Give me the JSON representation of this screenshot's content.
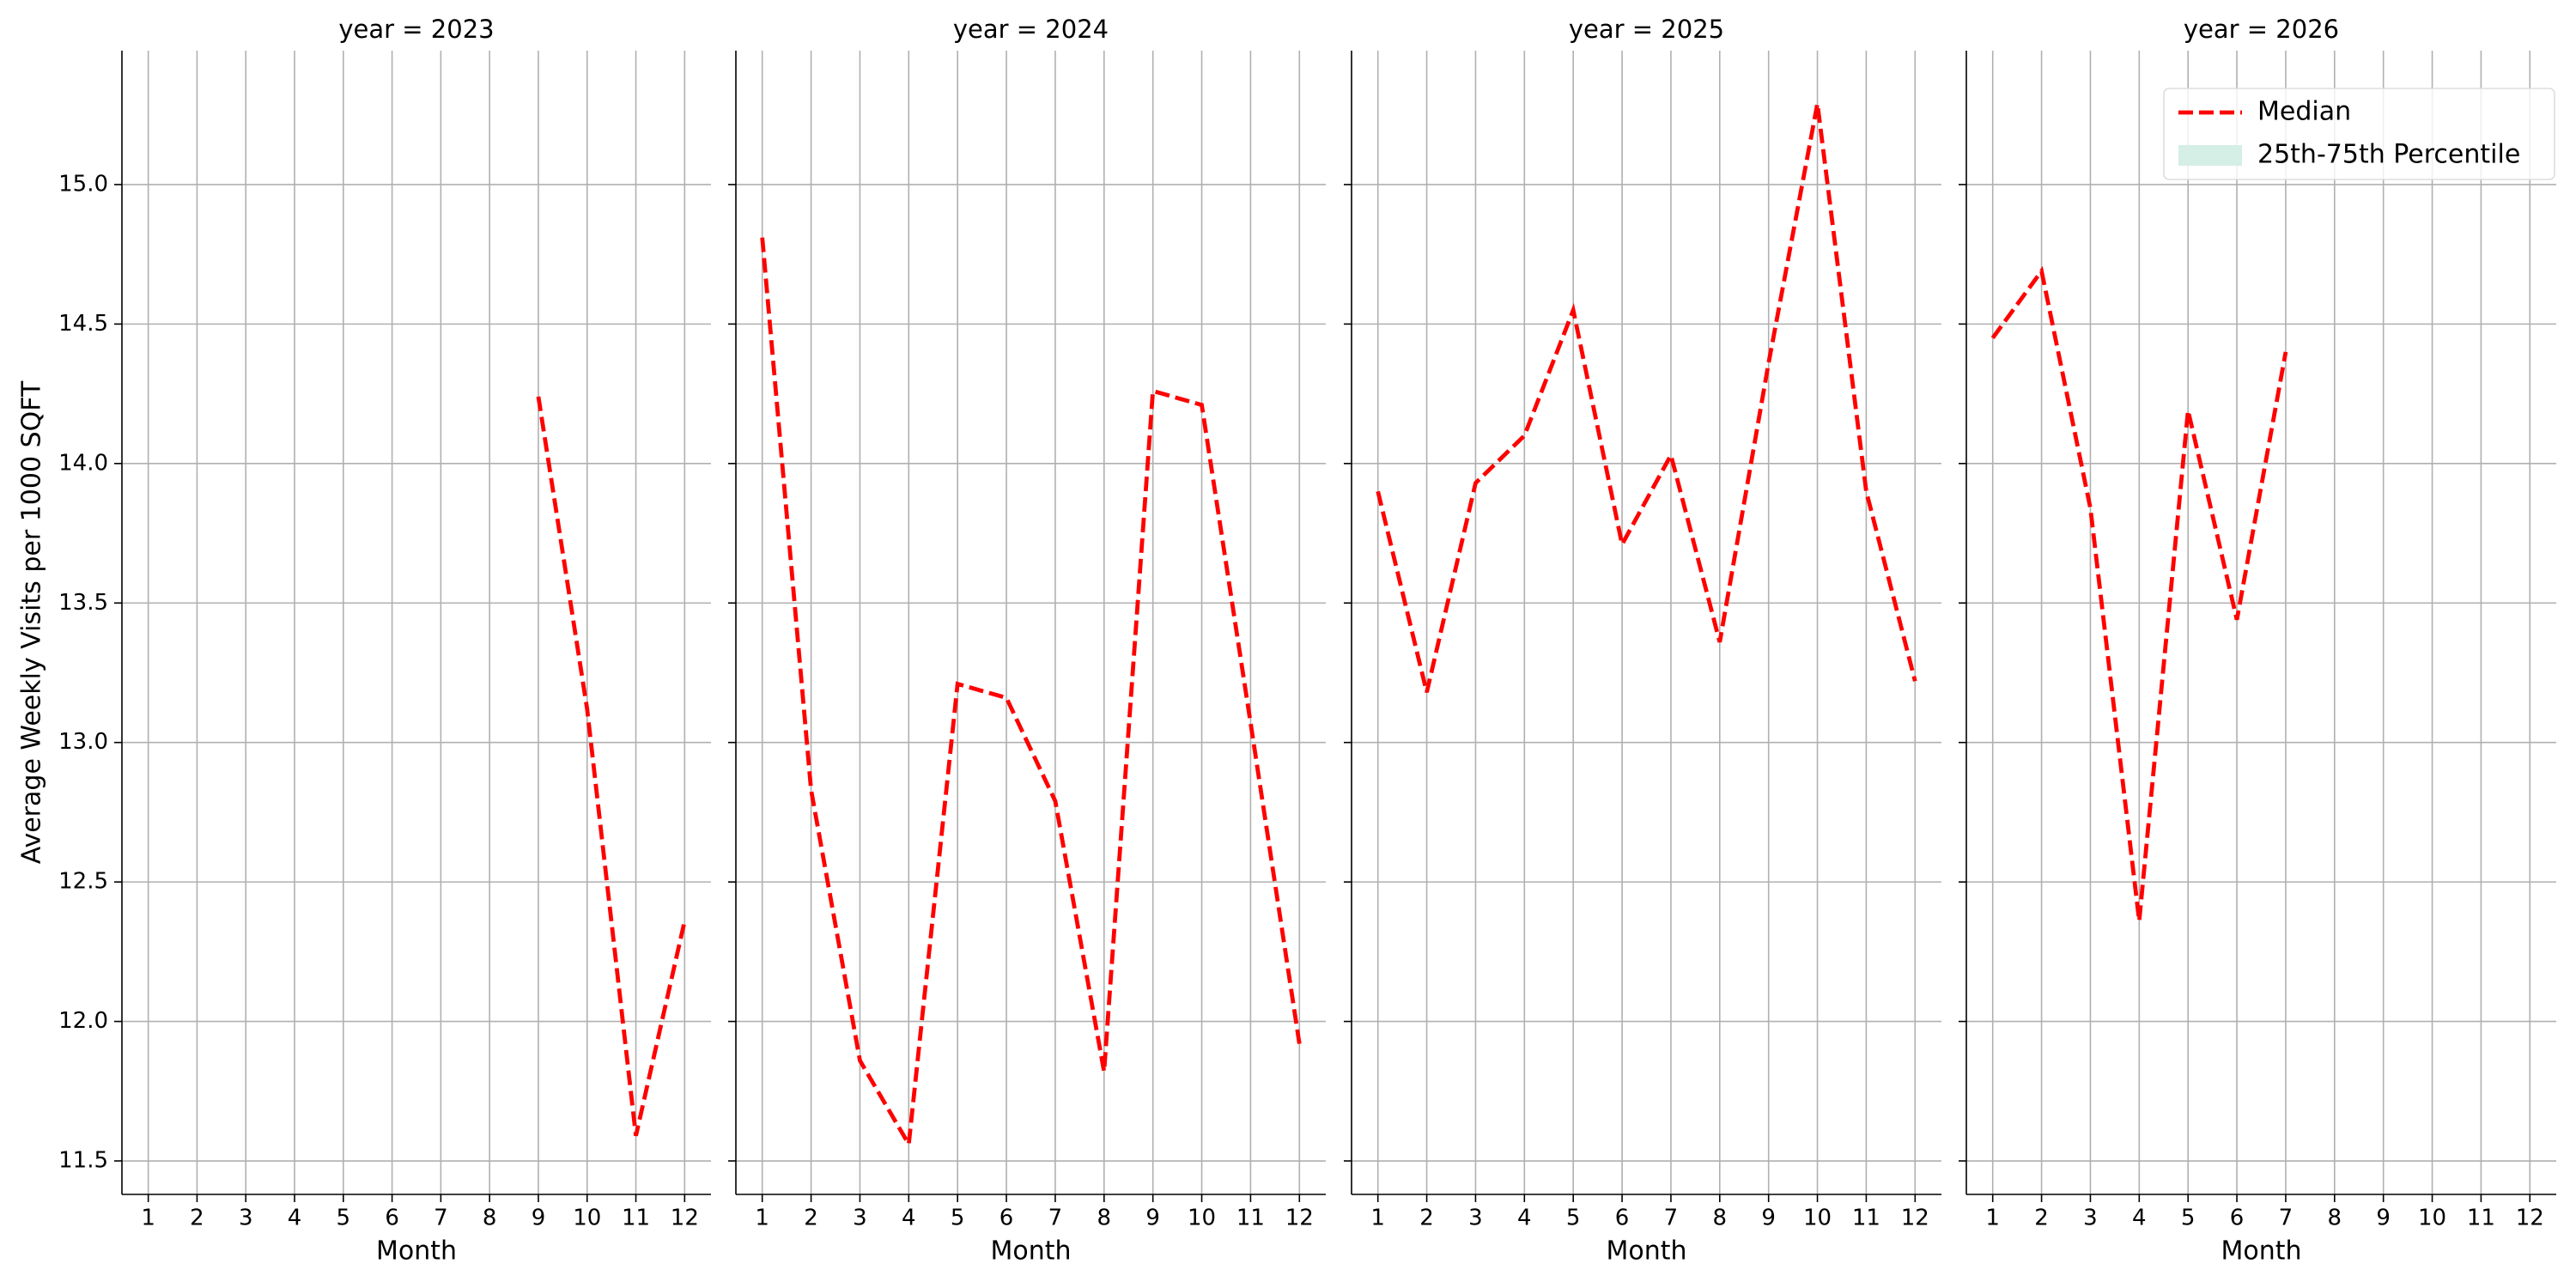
{
  "chart_data": [
    {
      "type": "line",
      "title": "year = 2023",
      "ylabel": "Average Weekly Visits per 1000 SQFT",
      "xlabel": "Month",
      "x": [
        1,
        2,
        3,
        4,
        5,
        6,
        7,
        8,
        9,
        10,
        11,
        12
      ],
      "series": [
        {
          "name": "Median",
          "color": "#ff0000",
          "dash": "dashed",
          "values": [
            null,
            null,
            null,
            null,
            null,
            null,
            null,
            null,
            14.24,
            13.12,
            11.59,
            12.36
          ]
        }
      ],
      "xlim": [
        0.46,
        12.54
      ],
      "xticks": [
        1,
        2,
        3,
        4,
        5,
        6,
        7,
        8,
        9,
        10,
        11,
        12
      ],
      "ylim": [
        11.38,
        15.48
      ],
      "yticks": [
        11.5,
        {
          "value": 12,
          "label": "12.0"
        },
        12.5,
        {
          "value": 13,
          "label": "13.0"
        },
        13.5,
        {
          "value": 14,
          "label": "14.0"
        },
        14.5,
        {
          "value": 15,
          "label": "15.0"
        }
      ],
      "grid": true
    },
    {
      "type": "line",
      "title": "year = 2024",
      "xlabel": "Month",
      "x": [
        1,
        2,
        3,
        4,
        5,
        6,
        7,
        8,
        9,
        10,
        11,
        12
      ],
      "series": [
        {
          "name": "Median",
          "color": "#ff0000",
          "dash": "dashed",
          "values": [
            14.81,
            12.83,
            11.86,
            11.56,
            13.21,
            13.16,
            12.79,
            11.82,
            14.26,
            14.21,
            13.07,
            11.92
          ]
        }
      ],
      "xlim": [
        0.46,
        12.54
      ],
      "xticks": [
        1,
        2,
        3,
        4,
        5,
        6,
        7,
        8,
        9,
        10,
        11,
        12
      ],
      "ylim": [
        11.38,
        15.48
      ],
      "yticks": [
        11.5,
        12,
        12.5,
        13,
        13.5,
        14,
        14.5,
        15
      ],
      "grid": true
    },
    {
      "type": "line",
      "title": "year = 2025",
      "xlabel": "Month",
      "x": [
        1,
        2,
        3,
        4,
        5,
        6,
        7,
        8,
        9,
        10,
        11,
        12
      ],
      "series": [
        {
          "name": "Median",
          "color": "#ff0000",
          "dash": "dashed",
          "values": [
            13.9,
            13.18,
            13.93,
            14.1,
            14.55,
            13.71,
            14.03,
            13.36,
            14.36,
            15.29,
            13.9,
            13.22
          ]
        }
      ],
      "xlim": [
        0.46,
        12.54
      ],
      "xticks": [
        1,
        2,
        3,
        4,
        5,
        6,
        7,
        8,
        9,
        10,
        11,
        12
      ],
      "ylim": [
        11.38,
        15.48
      ],
      "yticks": [
        11.5,
        12,
        12.5,
        13,
        13.5,
        14,
        14.5,
        15
      ],
      "grid": true
    },
    {
      "type": "line",
      "title": "year = 2026",
      "xlabel": "Month",
      "x": [
        1,
        2,
        3,
        4,
        5,
        6,
        7,
        8,
        9,
        10,
        11,
        12
      ],
      "series": [
        {
          "name": "Median",
          "color": "#ff0000",
          "dash": "dashed",
          "values": [
            14.45,
            14.69,
            13.84,
            12.36,
            14.19,
            13.44,
            14.4,
            null,
            null,
            null,
            null,
            null
          ]
        }
      ],
      "xlim": [
        0.46,
        12.54
      ],
      "xticks": [
        1,
        2,
        3,
        4,
        5,
        6,
        7,
        8,
        9,
        10,
        11,
        12
      ],
      "ylim": [
        11.38,
        15.48
      ],
      "yticks": [
        11.5,
        12,
        12.5,
        13,
        13.5,
        14,
        14.5,
        15
      ],
      "grid": true,
      "legend": {
        "position": "upper right",
        "entries": [
          {
            "name": "Median",
            "color": "#ff0000",
            "kind": "line"
          },
          {
            "name": "25th-75th Percentile",
            "color": "#d5eee6",
            "kind": "patch"
          }
        ]
      }
    }
  ]
}
